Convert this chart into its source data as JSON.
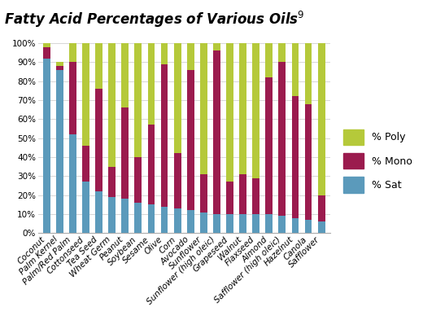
{
  "title": "Fatty Acid Percentages of Various Oils",
  "title_superscript": "9",
  "categories": [
    "Coconut",
    "Palm Kernel",
    "Palm/Red Palm",
    "Cottonseed",
    "Tea Seed",
    "Wheat Germ",
    "Peanut",
    "Soybean",
    "Sesame",
    "Olive",
    "Corn",
    "Avocado",
    "Sunflower",
    "Sunflower (high oleic)",
    "Grapeseed",
    "Walnut",
    "Flaxseed",
    "Almond",
    "Safflower (high oleic)",
    "Hazelnut",
    "Canola",
    "Safflower"
  ],
  "sat": [
    92,
    86,
    52,
    27,
    22,
    19,
    18,
    16,
    15,
    14,
    13,
    12,
    11,
    10,
    10,
    10,
    10,
    10,
    9,
    8,
    7,
    6
  ],
  "mono": [
    6,
    2,
    38,
    19,
    54,
    16,
    48,
    24,
    42,
    75,
    29,
    74,
    20,
    86,
    17,
    21,
    19,
    72,
    81,
    64,
    61,
    14
  ],
  "poly": [
    2,
    2,
    10,
    54,
    24,
    65,
    34,
    60,
    43,
    11,
    58,
    14,
    69,
    4,
    73,
    69,
    71,
    18,
    10,
    28,
    32,
    80
  ],
  "color_sat": "#5b9abb",
  "color_mono": "#9b1b4e",
  "color_poly": "#b5c93a",
  "legend_labels": [
    "% Poly",
    "% Mono",
    "% Sat"
  ],
  "ylim": [
    0,
    100
  ],
  "background_color": "#ffffff",
  "grid_color": "#d0d0d0",
  "title_fontsize": 12,
  "tick_fontsize": 7.5,
  "legend_fontsize": 9,
  "bar_width": 0.55
}
